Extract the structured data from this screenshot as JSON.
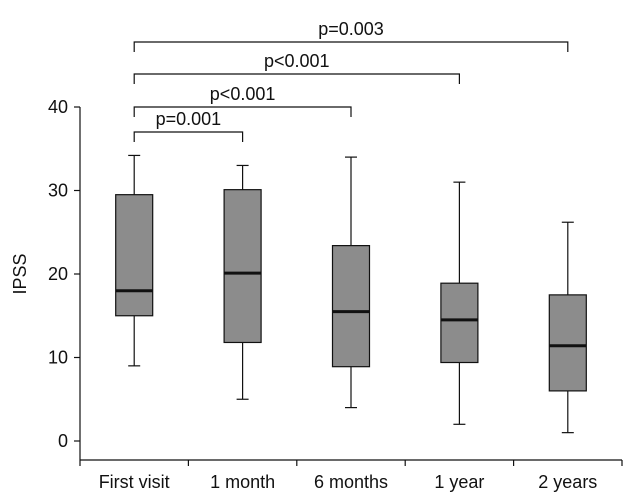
{
  "chart_data": {
    "type": "box",
    "ylabel": "IPSS",
    "ylim": [
      0,
      40
    ],
    "yticks": [
      "0",
      "10",
      "20",
      "30",
      "40"
    ],
    "categories": [
      "First visit",
      "1 month",
      "6 months",
      "1 year",
      "2 years"
    ],
    "boxes": [
      {
        "min": 9,
        "q1": 15,
        "median": 18,
        "q3": 29.5,
        "max": 34.2
      },
      {
        "min": 5,
        "q1": 11.8,
        "median": 20.1,
        "q3": 30.1,
        "max": 33
      },
      {
        "min": 4,
        "q1": 8.9,
        "median": 15.5,
        "q3": 23.4,
        "max": 34
      },
      {
        "min": 2,
        "q1": 9.4,
        "median": 14.5,
        "q3": 18.9,
        "max": 31
      },
      {
        "min": 1,
        "q1": 6,
        "median": 11.4,
        "q3": 17.5,
        "max": 26.2
      }
    ],
    "comparisons": [
      {
        "from": 0,
        "to": 1,
        "label": "p=0.001"
      },
      {
        "from": 0,
        "to": 2,
        "label": "p<0.001"
      },
      {
        "from": 0,
        "to": 3,
        "label": "p<0.001"
      },
      {
        "from": 0,
        "to": 4,
        "label": "p=0.003"
      }
    ],
    "box_color": "#8c8c8c",
    "grid": false
  }
}
